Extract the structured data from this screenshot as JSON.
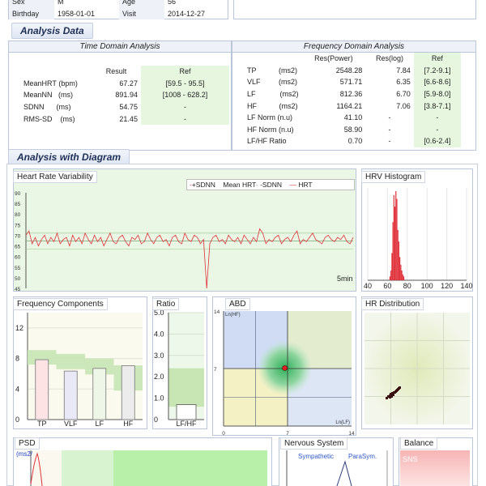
{
  "patient": {
    "sex_label": "Sex",
    "sex_value": "M",
    "age_label": "Age",
    "age_value": "56",
    "birthday_label": "Birthday",
    "birthday_value": "1958-01-01",
    "visit_label": "Visit",
    "visit_value": "2014-12-27"
  },
  "analysis_data": {
    "title": "Analysis Data",
    "time_domain": {
      "title": "Time Domain Analysis",
      "col_result": "Result",
      "col_ref": "Ref",
      "rows": [
        {
          "name": "MeanHRT",
          "unit": "(bpm)",
          "result": "67.27",
          "ref": "[59.5 - 95.5]"
        },
        {
          "name": "MeanNN",
          "unit": "(ms)",
          "result": "891.94",
          "ref": "[1008 - 628.2]"
        },
        {
          "name": "SDNN",
          "unit": "(ms)",
          "result": "54.75",
          "ref": "-"
        },
        {
          "name": "RMS-SD",
          "unit": "(ms)",
          "result": "21.45",
          "ref": "-"
        }
      ]
    },
    "freq_domain": {
      "title": "Frequency Domain Analysis",
      "col_power": "Res(Power)",
      "col_log": "Res(log)",
      "col_ref": "Ref",
      "rows": [
        {
          "name": "TP",
          "unit": "(ms2)",
          "power": "2548.28",
          "log": "7.84",
          "ref": "[7.2-9.1]"
        },
        {
          "name": "VLF",
          "unit": "(ms2)",
          "power": "571.71",
          "log": "6.35",
          "ref": "[6.6-8.6]"
        },
        {
          "name": "LF",
          "unit": "(ms2)",
          "power": "812.36",
          "log": "6.70",
          "ref": "[5.9-8.0]"
        },
        {
          "name": "HF",
          "unit": "(ms2)",
          "power": "1164.21",
          "log": "7.06",
          "ref": "[3.8-7.1]"
        },
        {
          "name": "LF Norm",
          "unit": "(n.u)",
          "power": "41.10",
          "log": "-",
          "ref": "-"
        },
        {
          "name": "HF Norm",
          "unit": "(n.u)",
          "power": "58.90",
          "log": "-",
          "ref": "-"
        },
        {
          "name": "LF/HF Ratio",
          "unit": "",
          "power": "0.70",
          "log": "-",
          "ref": "[0.6-2.4]"
        }
      ]
    }
  },
  "diagram": {
    "title": "Analysis with Diagram",
    "hrv": {
      "title": "Heart Rate Variability",
      "legend_sdnn_plus": "+SDNN",
      "legend_mean": "Mean HRT",
      "legend_sdnn_minus": "-SDNN",
      "legend_hrt": "HRT",
      "xlabel": "5min"
    },
    "histogram": {
      "title": "HRV Histogram"
    },
    "freq_components": {
      "title": "Frequency Components"
    },
    "ratio": {
      "title": "Ratio"
    },
    "abd": {
      "title": "ABD",
      "y_axis": "Ln(HF)",
      "x_axis": "Ln(LF)"
    },
    "hr_distribution": {
      "title": "HR Distribution"
    },
    "psd": {
      "title": "PSD",
      "unit": "(ms2/Hz)"
    },
    "nervous": {
      "title": "Nervous System",
      "sympathetic": "Sympathetic",
      "parasym": "ParaSym."
    },
    "balance": {
      "title": "Balance",
      "sns": "SNS"
    }
  },
  "colors": {
    "hrt": "#e0313a",
    "band": "#c7e6b4",
    "accent": "#1d2f55"
  },
  "chart_data": [
    {
      "type": "line",
      "title": "Heart Rate Variability",
      "xlabel": "5min",
      "ylim": [
        45,
        90
      ],
      "yticks": [
        "90",
        "85",
        "80",
        "75",
        "70",
        "65",
        "60",
        "55",
        "50",
        "45"
      ],
      "series": [
        {
          "name": "HRT",
          "values": [
            70,
            72,
            66,
            69,
            65,
            68,
            70,
            66,
            69,
            67,
            71,
            66,
            68,
            69,
            65,
            70,
            67,
            69,
            66,
            71,
            68,
            66,
            70,
            67,
            69,
            65,
            68,
            71,
            67,
            66,
            69,
            70,
            67,
            65,
            69,
            68,
            70,
            66,
            67,
            71,
            68,
            66,
            69,
            70,
            67,
            68,
            65,
            69,
            70,
            67,
            66,
            71,
            68,
            67,
            70,
            69,
            66,
            68,
            45,
            66,
            69,
            70,
            67,
            68,
            66,
            70,
            68,
            67,
            69,
            66,
            70,
            68,
            66,
            69,
            67,
            73,
            71,
            66,
            68,
            67,
            69,
            70,
            66,
            68,
            69,
            67,
            70,
            72,
            66,
            68,
            67,
            69,
            71,
            68,
            67,
            66,
            69,
            70,
            68,
            67,
            69,
            68,
            70,
            67,
            66,
            69
          ]
        },
        {
          "name": "+SDNN",
          "values": [
            71
          ]
        },
        {
          "name": "Mean HRT",
          "values": [
            67.3
          ]
        },
        {
          "name": "-SDNN",
          "values": [
            63.5
          ]
        }
      ]
    },
    {
      "type": "bar",
      "title": "HRV Histogram",
      "xticks": [
        "40",
        "60",
        "80",
        "100",
        "120",
        "140"
      ],
      "xlim": [
        40,
        140
      ],
      "x": [
        62,
        63,
        64,
        65,
        66,
        67,
        68,
        69,
        70,
        71,
        72,
        73,
        74,
        75,
        76
      ],
      "values": [
        2,
        5,
        14,
        30,
        44,
        38,
        46,
        42,
        26,
        20,
        12,
        8,
        5,
        3,
        2
      ]
    },
    {
      "type": "bar",
      "title": "Frequency Components",
      "categories": [
        "TP",
        "VLF",
        "LF",
        "HF"
      ],
      "values": [
        7.84,
        6.35,
        6.7,
        7.06
      ],
      "ref_ranges": [
        [
          7.2,
          9.1
        ],
        [
          6.6,
          8.6
        ],
        [
          5.9,
          8.0
        ],
        [
          3.8,
          7.1
        ]
      ],
      "yticks": [
        "12",
        "8",
        "4",
        "0"
      ],
      "ylim": [
        0,
        14
      ]
    },
    {
      "type": "bar",
      "title": "Ratio",
      "categories": [
        "LF/HF"
      ],
      "values": [
        0.7
      ],
      "ref_ranges": [
        [
          0.6,
          2.4
        ]
      ],
      "yticks": [
        "5.0",
        "4.0",
        "3.0",
        "2.0",
        "1.0",
        "0"
      ],
      "ylim": [
        0,
        5
      ]
    },
    {
      "type": "scatter",
      "title": "ABD",
      "xticks": [
        "0",
        "7",
        "14"
      ],
      "yticks": [
        "14",
        "7"
      ],
      "xlim": [
        0,
        14
      ],
      "ylim": [
        0,
        14
      ],
      "points": [
        {
          "x": 6.7,
          "y": 7.06
        }
      ]
    }
  ]
}
